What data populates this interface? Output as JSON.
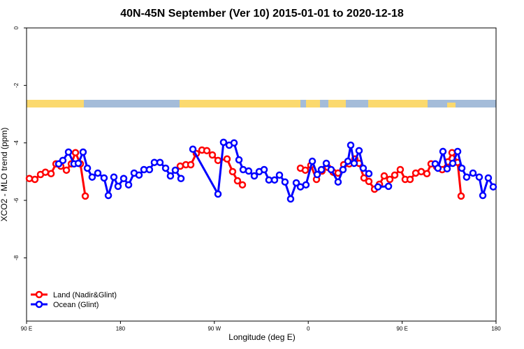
{
  "chart_data": {
    "type": "line",
    "title": "40N-45N September (Ver 10)   2015-01-01 to 2020-12-18",
    "x_label": "Longitude (deg E)",
    "y_label": "XCO2 - MLO trend (ppm)",
    "xlim": [
      90,
      540
    ],
    "ylim": [
      -10.2,
      0
    ],
    "xticks": [
      {
        "value": 90,
        "label": "90 E"
      },
      180,
      {
        "value": 270,
        "label": "90 W"
      },
      {
        "value": 360,
        "label": "0"
      },
      {
        "value": 450,
        "label": "90 E"
      },
      {
        "value": 540,
        "label": "180"
      }
    ],
    "yticks": [
      -8,
      -6,
      -4,
      -2,
      0
    ],
    "legend": "bottom-left",
    "series": [
      {
        "name": "Land (Nadir&Glint)",
        "color": "#ff0000",
        "x": [
          92.7,
          98.0,
          103.4,
          108.1,
          113.5,
          118.2,
          122.8,
          128.2,
          132.9,
          136.9,
          141.6,
          146.3,
          null,
          237.3,
          242.7,
          247.4,
          252.7,
          258.1,
          262.8,
          268.1,
          273.5,
          282.2,
          287.5,
          292.2,
          296.9,
          null,
          352.5,
          357.2,
          362.5,
          367.9,
          373.2,
          378.6,
          383.9,
          388.6,
          394.0,
          399.3,
          404.7,
          408.7,
          413.4,
          418.1,
          423.5,
          428.2,
          432.8,
          438.2,
          442.9,
          448.2,
          452.9,
          457.6,
          463.0,
          468.3,
          473.7,
          477.7,
          483.0,
          488.4,
          493.8,
          497.8,
          503.2,
          506.5
        ],
        "values": [
          -5.24,
          -5.27,
          -5.1,
          -5.02,
          -5.07,
          -4.73,
          -4.81,
          -4.95,
          -4.73,
          -4.34,
          -4.73,
          -5.85,
          null,
          -4.81,
          -4.76,
          -4.76,
          -4.37,
          -4.25,
          -4.27,
          -4.42,
          -4.61,
          -4.56,
          -5.0,
          -5.32,
          -5.46,
          null,
          -4.88,
          -4.95,
          -4.78,
          -5.27,
          -4.98,
          -4.85,
          -5.02,
          -5.05,
          -4.76,
          -4.73,
          -4.56,
          -4.71,
          -5.22,
          -5.34,
          -5.61,
          -5.44,
          -5.15,
          -5.27,
          -5.12,
          -4.93,
          -5.27,
          -5.27,
          -5.05,
          -5.0,
          -5.07,
          -4.73,
          -4.83,
          -4.93,
          -4.66,
          -4.34,
          -4.68,
          -5.85
        ]
      },
      {
        "name": "Ocean (Glint)",
        "color": "#0000ff",
        "x": [
          120.8,
          124.8,
          130.2,
          135.5,
          139.6,
          144.2,
          148.3,
          152.9,
          158.3,
          164.3,
          168.4,
          173.7,
          177.7,
          183.1,
          187.8,
          193.1,
          197.8,
          202.5,
          207.8,
          212.5,
          217.9,
          223.3,
          227.9,
          232.6,
          238.0,
          null,
          249.4,
          273.5,
          278.8,
          284.2,
          288.9,
          293.6,
          297.6,
          302.9,
          308.3,
          313.0,
          317.7,
          322.3,
          327.7,
          332.4,
          337.7,
          343.1,
          348.5,
          352.5,
          357.8,
          363.9,
          368.6,
          372.6,
          377.3,
          381.9,
          388.6,
          393.3,
          398.0,
          400.7,
          404.0,
          408.7,
          412.7,
          418.1,
          null,
          426.8,
          436.9,
          null,
          481.7,
          484.3,
          489.1,
          493.1,
          498.5,
          503.2,
          507.2,
          511.8,
          517.9,
          523.9,
          527.3,
          532.6,
          537.3
        ],
        "values": [
          -4.73,
          -4.61,
          -4.32,
          -4.73,
          -4.71,
          -4.32,
          -4.88,
          -5.19,
          -5.05,
          -5.22,
          -5.83,
          -5.19,
          -5.51,
          -5.24,
          -5.46,
          -5.05,
          -5.12,
          -4.93,
          -4.93,
          -4.68,
          -4.68,
          -4.88,
          -5.15,
          -4.95,
          -5.24,
          null,
          -4.22,
          -5.78,
          -3.98,
          -4.08,
          -4.0,
          -4.59,
          -4.93,
          -4.98,
          -5.15,
          -5.0,
          -4.93,
          -5.29,
          -5.29,
          -5.12,
          -5.36,
          -5.95,
          -5.39,
          -5.53,
          -5.46,
          -4.64,
          -5.1,
          -4.93,
          -4.71,
          -4.93,
          -5.36,
          -4.93,
          -4.64,
          -4.08,
          -4.71,
          -4.27,
          -4.88,
          -5.07,
          null,
          -5.53,
          -5.51,
          null,
          -4.73,
          -4.88,
          -4.3,
          -4.9,
          -4.71,
          -4.3,
          -4.88,
          -5.19,
          -5.05,
          -5.19,
          -5.83,
          -5.22,
          -5.53
        ]
      }
    ]
  }
}
